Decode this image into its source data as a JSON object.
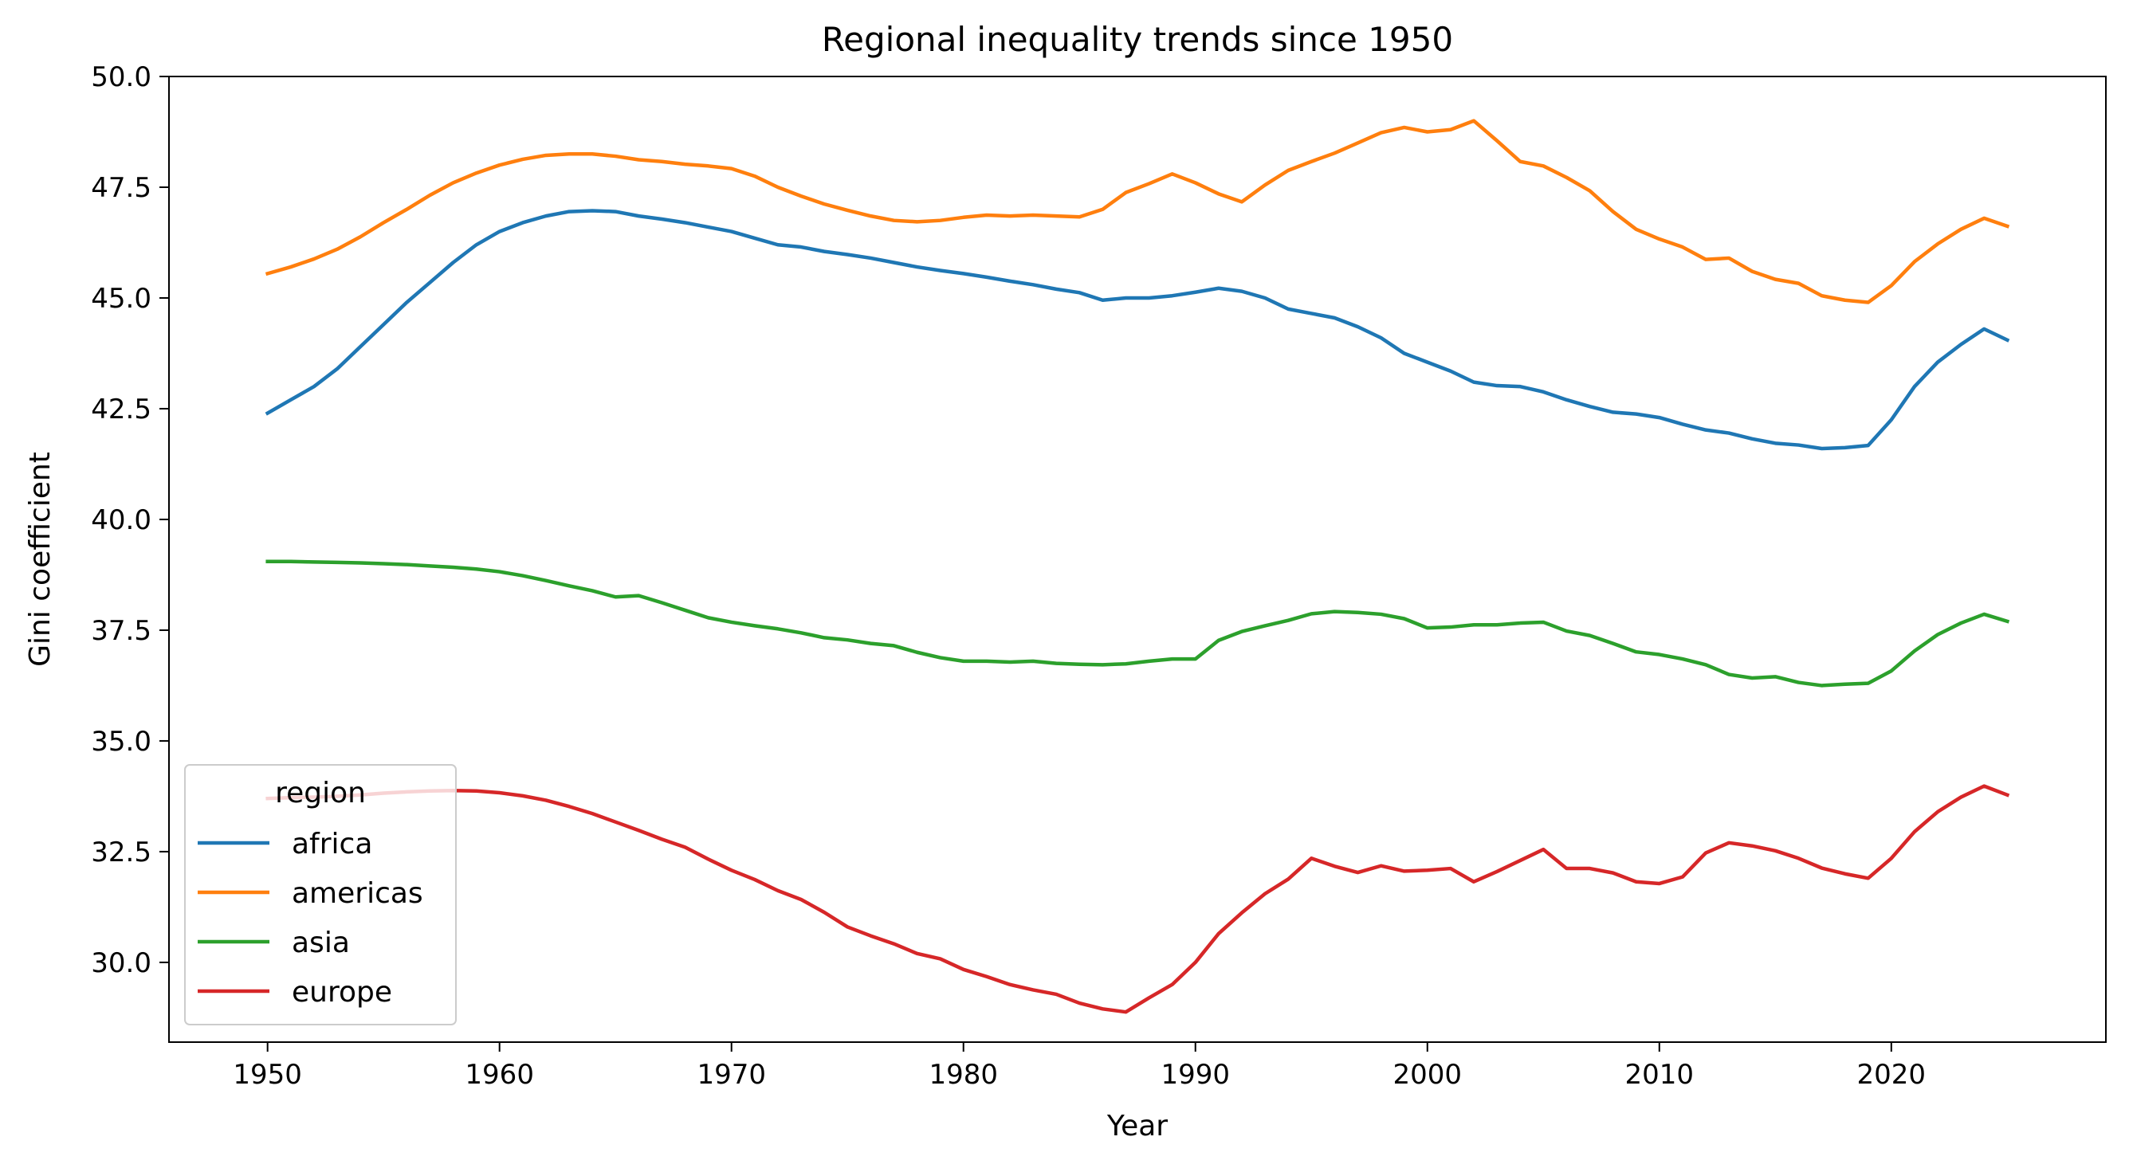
{
  "chart_data": {
    "type": "line",
    "title": "Regional inequality trends since 1950",
    "xlabel": "Year",
    "ylabel": "Gini coefficient",
    "xlim": [
      1945.75,
      2029.25
    ],
    "ylim": [
      28.2,
      50.0
    ],
    "xticks": [
      1950,
      1960,
      1970,
      1980,
      1990,
      2000,
      2010,
      2020
    ],
    "yticks": [
      30.0,
      32.5,
      35.0,
      37.5,
      40.0,
      42.5,
      45.0,
      47.5,
      50.0
    ],
    "ytick_labels": [
      "30.0",
      "32.5",
      "35.0",
      "37.5",
      "40.0",
      "42.5",
      "45.0",
      "47.5",
      "50.0"
    ],
    "grid": false,
    "legend": {
      "title": "region",
      "placement": "lower-left"
    },
    "x": [
      1950,
      1951,
      1952,
      1953,
      1954,
      1955,
      1956,
      1957,
      1958,
      1959,
      1960,
      1961,
      1962,
      1963,
      1964,
      1965,
      1966,
      1967,
      1968,
      1969,
      1970,
      1971,
      1972,
      1973,
      1974,
      1975,
      1976,
      1977,
      1978,
      1979,
      1980,
      1981,
      1982,
      1983,
      1984,
      1985,
      1986,
      1987,
      1988,
      1989,
      1990,
      1991,
      1992,
      1993,
      1994,
      1995,
      1996,
      1997,
      1998,
      1999,
      2000,
      2001,
      2002,
      2003,
      2004,
      2005,
      2006,
      2007,
      2008,
      2009,
      2010,
      2011,
      2012,
      2013,
      2014,
      2015,
      2016,
      2017,
      2018,
      2019,
      2020,
      2021,
      2022,
      2023,
      2024,
      2025
    ],
    "series": [
      {
        "name": "africa",
        "color": "#1f77b4",
        "values": [
          42.4,
          42.7,
          43.0,
          43.4,
          43.9,
          44.4,
          44.9,
          45.35,
          45.8,
          46.2,
          46.5,
          46.7,
          46.85,
          46.95,
          46.97,
          46.95,
          46.85,
          46.78,
          46.7,
          46.6,
          46.5,
          46.35,
          46.2,
          46.15,
          46.05,
          45.98,
          45.9,
          45.8,
          45.7,
          45.62,
          45.55,
          45.47,
          45.38,
          45.3,
          45.2,
          45.12,
          44.95,
          45.0,
          45.0,
          45.05,
          45.13,
          45.22,
          45.15,
          45.0,
          44.75,
          44.65,
          44.55,
          44.35,
          44.1,
          43.75,
          43.55,
          43.35,
          43.1,
          43.02,
          43.0,
          42.88,
          42.7,
          42.55,
          42.42,
          42.38,
          42.3,
          42.15,
          42.02,
          41.95,
          41.82,
          41.72,
          41.68,
          41.6,
          41.62,
          41.67,
          42.25,
          43.0,
          43.55,
          43.95,
          44.3,
          44.05
        ]
      },
      {
        "name": "americas",
        "color": "#ff7f0e",
        "values": [
          45.55,
          45.7,
          45.88,
          46.1,
          46.38,
          46.7,
          47.0,
          47.32,
          47.6,
          47.82,
          48.0,
          48.13,
          48.22,
          48.25,
          48.25,
          48.2,
          48.12,
          48.08,
          48.02,
          47.98,
          47.92,
          47.75,
          47.5,
          47.3,
          47.12,
          46.98,
          46.85,
          46.75,
          46.72,
          46.75,
          46.82,
          46.87,
          46.85,
          46.87,
          46.85,
          46.83,
          47.0,
          47.38,
          47.58,
          47.8,
          47.6,
          47.35,
          47.17,
          47.55,
          47.88,
          48.08,
          48.27,
          48.5,
          48.73,
          48.85,
          48.75,
          48.8,
          49.0,
          48.55,
          48.08,
          47.98,
          47.72,
          47.42,
          46.95,
          46.55,
          46.33,
          46.15,
          45.87,
          45.9,
          45.6,
          45.42,
          45.33,
          45.05,
          44.95,
          44.9,
          45.28,
          45.82,
          46.22,
          46.55,
          46.8,
          46.62
        ]
      },
      {
        "name": "asia",
        "color": "#2ca02c",
        "values": [
          39.05,
          39.05,
          39.04,
          39.03,
          39.02,
          39.0,
          38.98,
          38.95,
          38.92,
          38.88,
          38.82,
          38.73,
          38.62,
          38.5,
          38.39,
          38.25,
          38.28,
          38.12,
          37.95,
          37.78,
          37.68,
          37.6,
          37.53,
          37.44,
          37.33,
          37.28,
          37.2,
          37.15,
          37.0,
          36.88,
          36.8,
          36.8,
          36.78,
          36.8,
          36.75,
          36.73,
          36.72,
          36.74,
          36.8,
          36.85,
          36.85,
          37.27,
          37.47,
          37.6,
          37.72,
          37.87,
          37.92,
          37.9,
          37.86,
          37.76,
          37.55,
          37.57,
          37.62,
          37.62,
          37.66,
          37.68,
          37.48,
          37.38,
          37.2,
          37.01,
          36.95,
          36.85,
          36.72,
          36.5,
          36.42,
          36.45,
          36.32,
          36.25,
          36.28,
          36.3,
          36.58,
          37.03,
          37.4,
          37.66,
          37.86,
          37.7
        ]
      },
      {
        "name": "europe",
        "color": "#d62728",
        "values": [
          33.7,
          33.72,
          33.73,
          33.75,
          33.78,
          33.82,
          33.85,
          33.87,
          33.88,
          33.87,
          33.83,
          33.76,
          33.66,
          33.52,
          33.36,
          33.17,
          32.98,
          32.78,
          32.6,
          32.33,
          32.08,
          31.87,
          31.62,
          31.42,
          31.13,
          30.8,
          30.6,
          30.42,
          30.2,
          30.08,
          29.84,
          29.68,
          29.5,
          29.38,
          29.28,
          29.08,
          28.95,
          28.88,
          29.2,
          29.5,
          30.0,
          30.65,
          31.12,
          31.55,
          31.88,
          32.35,
          32.17,
          32.03,
          32.18,
          32.06,
          32.08,
          32.12,
          31.82,
          32.05,
          32.3,
          32.55,
          32.12,
          32.12,
          32.02,
          31.82,
          31.78,
          31.93,
          32.47,
          32.7,
          32.63,
          32.52,
          32.35,
          32.13,
          32.0,
          31.9,
          32.35,
          32.95,
          33.4,
          33.73,
          33.98,
          33.78
        ]
      }
    ]
  }
}
